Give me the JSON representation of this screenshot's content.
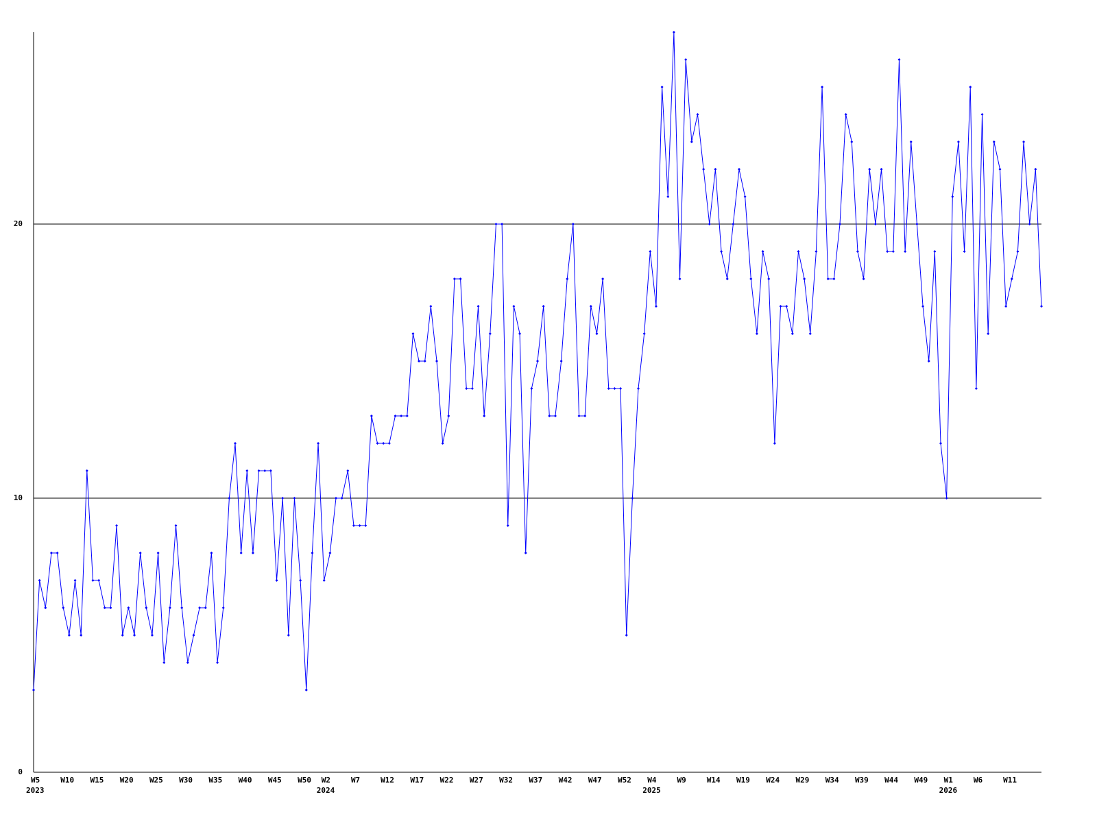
{
  "chart_data": {
    "type": "line",
    "categories": [
      "W5",
      null,
      null,
      null,
      null,
      "W10",
      null,
      null,
      null,
      null,
      "W15",
      null,
      null,
      null,
      null,
      "W20",
      null,
      null,
      null,
      null,
      "W25",
      null,
      null,
      null,
      null,
      "W30",
      null,
      null,
      null,
      null,
      "W35",
      null,
      null,
      null,
      null,
      "W40",
      null,
      null,
      null,
      null,
      "W45",
      null,
      null,
      null,
      null,
      "W50",
      null,
      null,
      null,
      "W2",
      null,
      null,
      null,
      null,
      "W7",
      null,
      null,
      null,
      null,
      "W12",
      null,
      null,
      null,
      null,
      "W17",
      null,
      null,
      null,
      null,
      "W22",
      null,
      null,
      null,
      null,
      "W27",
      null,
      null,
      null,
      null,
      "W32",
      null,
      null,
      null,
      null,
      "W37",
      null,
      null,
      null,
      null,
      "W42",
      null,
      null,
      null,
      null,
      "W47",
      null,
      null,
      null,
      null,
      "W52",
      null,
      null,
      null,
      null,
      "W4",
      null,
      null,
      null,
      null,
      "W9",
      null,
      null,
      null,
      null,
      "W14",
      null,
      null,
      null,
      null,
      "W19",
      null,
      null,
      null,
      null,
      "W24",
      null,
      null,
      null,
      null,
      "W29",
      null,
      null,
      null,
      null,
      "W34",
      null,
      null,
      null,
      null,
      "W39",
      null,
      null,
      null,
      null,
      "W44",
      null,
      null,
      null,
      null,
      "W49",
      null,
      null,
      null,
      null,
      "W1",
      null,
      null,
      null,
      null,
      "W6",
      null,
      null,
      null,
      null,
      "W11",
      null,
      null,
      null,
      null,
      null,
      null
    ],
    "year_labels": [
      "2023",
      null,
      null,
      null,
      null,
      null,
      null,
      null,
      null,
      null,
      null,
      null,
      null,
      null,
      null,
      null,
      null,
      null,
      null,
      null,
      null,
      null,
      null,
      null,
      null,
      null,
      null,
      null,
      null,
      null,
      null,
      null,
      null,
      null,
      null,
      null,
      null,
      null,
      null,
      null,
      null,
      null,
      null,
      null,
      null,
      null,
      null,
      null,
      null,
      "2024",
      null,
      null,
      null,
      null,
      null,
      null,
      null,
      null,
      null,
      null,
      null,
      null,
      null,
      null,
      null,
      null,
      null,
      null,
      null,
      null,
      null,
      null,
      null,
      null,
      null,
      null,
      null,
      null,
      null,
      null,
      null,
      null,
      null,
      null,
      null,
      null,
      null,
      null,
      null,
      null,
      null,
      null,
      null,
      null,
      null,
      null,
      null,
      null,
      null,
      null,
      null,
      null,
      null,
      null,
      "2025",
      null,
      null,
      null,
      null,
      null,
      null,
      null,
      null,
      null,
      null,
      null,
      null,
      null,
      null,
      null,
      null,
      null,
      null,
      null,
      null,
      null,
      null,
      null,
      null,
      null,
      null,
      null,
      null,
      null,
      null,
      null,
      null,
      null,
      null,
      null,
      null,
      null,
      null,
      null,
      null,
      null,
      null,
      null,
      null,
      null,
      null,
      null,
      null,
      null,
      "2026",
      null,
      null,
      null,
      null,
      null,
      null,
      null,
      null,
      null,
      null,
      null,
      null,
      null,
      null,
      null,
      null
    ],
    "series": [
      {
        "color": "#0000ff",
        "values": [
          3,
          7,
          6,
          8,
          8,
          6,
          5,
          7,
          5,
          11,
          7,
          7,
          6,
          6,
          9,
          5,
          6,
          5,
          8,
          6,
          5,
          8,
          4,
          6,
          9,
          6,
          4,
          5,
          6,
          6,
          8,
          4,
          6,
          10,
          12,
          8,
          11,
          8,
          11,
          11,
          11,
          7,
          10,
          5,
          10,
          7,
          3,
          8,
          12,
          7,
          8,
          10,
          10,
          11,
          9,
          9,
          9,
          13,
          12,
          12,
          12,
          13,
          13,
          13,
          16,
          15,
          15,
          17,
          15,
          12,
          13,
          18,
          18,
          14,
          14,
          17,
          13,
          16,
          20,
          20,
          9,
          17,
          16,
          8,
          14,
          15,
          17,
          13,
          13,
          15,
          18,
          20,
          13,
          13,
          17,
          16,
          18,
          14,
          14,
          14,
          5,
          10,
          14,
          16,
          19,
          17,
          25,
          21,
          27,
          18,
          26,
          23,
          24,
          22,
          20,
          22,
          19,
          18,
          20,
          22,
          21,
          18,
          16,
          19,
          18,
          12,
          17,
          17,
          16,
          19,
          18,
          16,
          19,
          25,
          18,
          18,
          20,
          24,
          23,
          19,
          18,
          22,
          20,
          22,
          19,
          19,
          26,
          19,
          23,
          20,
          17,
          15,
          19,
          12,
          10,
          21,
          23,
          19,
          25,
          14,
          24,
          16,
          23,
          22,
          17,
          18,
          19,
          23,
          20,
          22,
          17
        ]
      }
    ],
    "ylim": [
      0,
      27
    ],
    "yticks": [
      0,
      10,
      20
    ],
    "grid": true,
    "grid_color": "#000000"
  }
}
